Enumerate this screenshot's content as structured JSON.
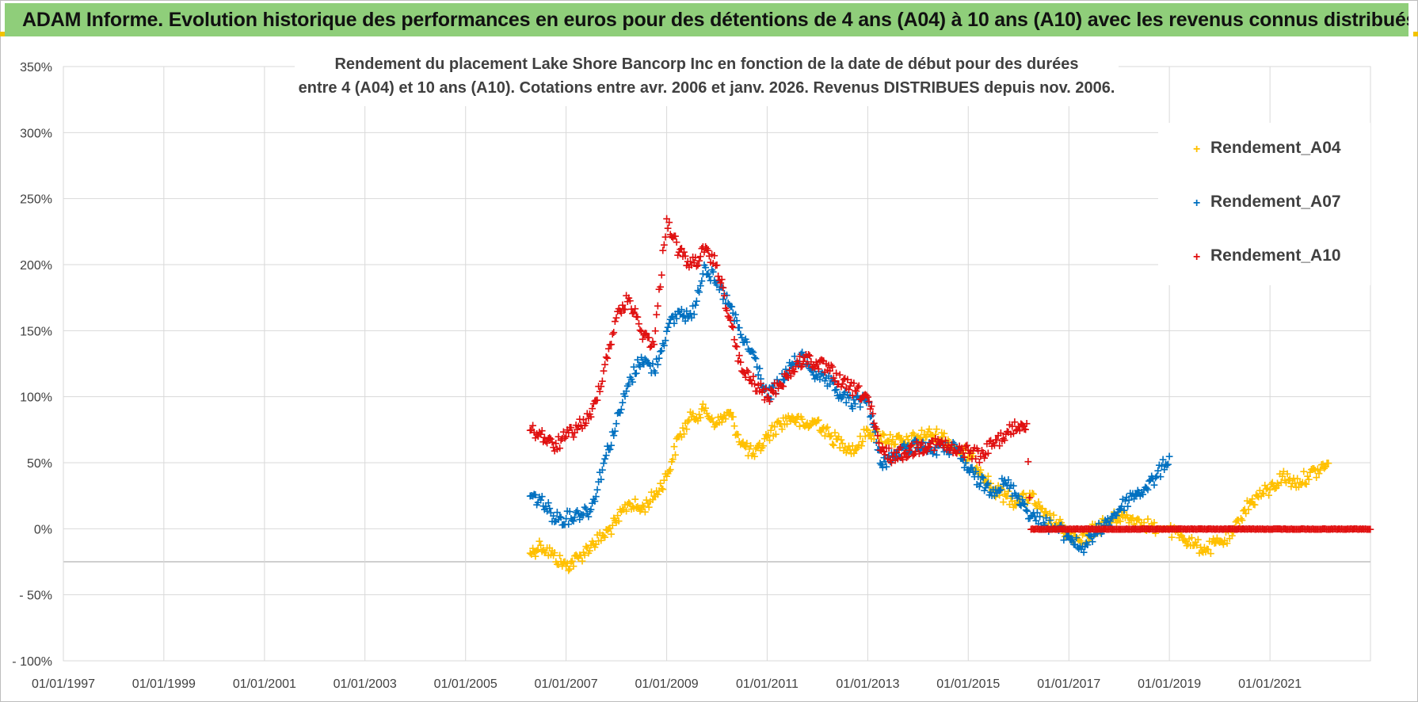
{
  "banner": "ADAM Informe. Evolution historique des performances en euros pour des détentions de 4 ans (A04) à 10 ans (A10) avec les revenus connus distribués",
  "chart_data": {
    "type": "scatter",
    "title_line1": "Rendement du placement Lake Shore Bancorp Inc en fonction de la date de début pour des durées",
    "title_line2": "entre 4 (A04) et 10 ans (A10). Cotations entre avr. 2006 et janv. 2026. Revenus DISTRIBUES depuis nov. 2006.",
    "x_tick_labels": [
      "01/01/1997",
      "01/01/1999",
      "01/01/2001",
      "01/01/2003",
      "01/01/2005",
      "01/01/2007",
      "01/01/2009",
      "01/01/2011",
      "01/01/2013",
      "01/01/2015",
      "01/01/2017",
      "01/01/2019",
      "01/01/2021"
    ],
    "y_tick_labels": [
      "350%",
      "300%",
      "250%",
      "200%",
      "150%",
      "100%",
      "50%",
      "0%",
      "- 50%",
      "- 100%"
    ],
    "xlim": [
      "1997-01-01",
      "2023-01-01"
    ],
    "ylim": [
      -100,
      350
    ],
    "grid": true,
    "legend_position": "top-right",
    "series": [
      {
        "name": "Rendement_A04",
        "color": "#ffc000",
        "x": [
          "2006-04-15",
          "2006-07-01",
          "2006-10-01",
          "2007-01-01",
          "2007-04-01",
          "2007-07-01",
          "2007-10-01",
          "2008-01-01",
          "2008-04-01",
          "2008-07-01",
          "2008-10-01",
          "2009-01-01",
          "2009-04-01",
          "2009-07-01",
          "2009-10-01",
          "2010-01-01",
          "2010-04-01",
          "2010-07-01",
          "2010-10-01",
          "2011-01-01",
          "2011-04-01",
          "2011-07-01",
          "2011-10-01",
          "2012-01-01",
          "2012-04-01",
          "2012-07-01",
          "2012-10-01",
          "2013-01-01",
          "2013-04-01",
          "2013-07-01",
          "2013-10-01",
          "2014-01-01",
          "2014-04-01",
          "2014-07-01",
          "2014-10-01",
          "2015-01-01",
          "2015-04-01",
          "2015-07-01",
          "2015-10-01",
          "2016-01-01",
          "2016-04-01",
          "2016-07-01",
          "2016-10-01",
          "2017-01-01",
          "2017-04-01",
          "2017-07-01",
          "2017-10-01",
          "2018-01-01",
          "2018-04-01",
          "2018-07-01",
          "2018-10-01",
          "2019-01-01",
          "2019-04-01",
          "2019-07-01",
          "2019-10-01",
          "2020-01-01",
          "2020-04-01",
          "2020-07-01",
          "2020-10-01",
          "2021-01-01",
          "2021-04-01",
          "2021-07-01",
          "2021-10-01",
          "2022-01-01",
          "2022-03-01"
        ],
        "y": [
          -18,
          -12,
          -20,
          -28,
          -22,
          -12,
          -5,
          5,
          20,
          15,
          25,
          40,
          70,
          85,
          90,
          80,
          88,
          65,
          55,
          70,
          80,
          85,
          78,
          82,
          70,
          65,
          60,
          75,
          70,
          68,
          65,
          70,
          72,
          70,
          62,
          55,
          45,
          30,
          25,
          20,
          25,
          10,
          5,
          -5,
          -10,
          0,
          5,
          10,
          8,
          5,
          0,
          0,
          -5,
          -12,
          -15,
          -10,
          -5,
          15,
          25,
          30,
          40,
          35,
          40,
          45,
          50
        ]
      },
      {
        "name": "Rendement_A07",
        "color": "#0070c0",
        "x": [
          "2006-04-15",
          "2006-07-01",
          "2006-10-01",
          "2007-01-01",
          "2007-04-01",
          "2007-07-01",
          "2007-10-01",
          "2008-01-01",
          "2008-04-01",
          "2008-07-01",
          "2008-10-01",
          "2009-01-01",
          "2009-04-01",
          "2009-07-01",
          "2009-10-01",
          "2010-01-01",
          "2010-04-01",
          "2010-07-01",
          "2010-10-01",
          "2011-01-01",
          "2011-04-01",
          "2011-07-01",
          "2011-10-01",
          "2012-01-01",
          "2012-04-01",
          "2012-07-01",
          "2012-10-01",
          "2013-01-01",
          "2013-04-01",
          "2013-07-01",
          "2013-10-01",
          "2014-01-01",
          "2014-04-01",
          "2014-07-01",
          "2014-10-01",
          "2015-01-01",
          "2015-04-01",
          "2015-07-01",
          "2015-10-01",
          "2016-01-01",
          "2016-04-01",
          "2016-07-01",
          "2016-10-01",
          "2017-01-01",
          "2017-04-01",
          "2017-07-01",
          "2017-10-01",
          "2018-01-01",
          "2018-04-01",
          "2018-07-01",
          "2018-10-01",
          "2019-01-01"
        ],
        "y": [
          25,
          22,
          10,
          8,
          12,
          15,
          50,
          80,
          110,
          130,
          120,
          150,
          165,
          160,
          200,
          185,
          170,
          145,
          130,
          100,
          110,
          125,
          130,
          115,
          110,
          100,
          95,
          100,
          50,
          55,
          60,
          65,
          60,
          62,
          60,
          45,
          35,
          30,
          35,
          25,
          10,
          5,
          0,
          -5,
          -15,
          -5,
          5,
          15,
          25,
          30,
          40,
          55
        ]
      },
      {
        "name": "Rendement_A10",
        "color": "#e01010",
        "x": [
          "2006-04-15",
          "2006-07-01",
          "2006-10-01",
          "2007-01-01",
          "2007-04-01",
          "2007-07-01",
          "2007-10-01",
          "2008-01-01",
          "2008-04-01",
          "2008-07-01",
          "2008-10-01",
          "2009-01-01",
          "2009-04-01",
          "2009-07-01",
          "2009-10-01",
          "2010-01-01",
          "2010-04-01",
          "2010-07-01",
          "2010-10-01",
          "2011-01-01",
          "2011-04-01",
          "2011-07-01",
          "2011-10-01",
          "2012-01-01",
          "2012-04-01",
          "2012-07-01",
          "2012-10-01",
          "2013-01-01",
          "2013-04-01",
          "2013-07-01",
          "2013-10-01",
          "2014-01-01",
          "2014-04-01",
          "2014-07-01",
          "2014-10-01",
          "2015-01-01",
          "2015-04-01",
          "2015-07-01",
          "2015-10-01",
          "2016-01-01",
          "2016-03-01",
          "2016-04-01",
          "2017-01-01",
          "2018-01-01",
          "2019-01-01",
          "2020-01-01",
          "2021-01-01",
          "2022-01-01",
          "2022-12-31"
        ],
        "y": [
          75,
          72,
          62,
          70,
          78,
          85,
          120,
          160,
          175,
          150,
          140,
          235,
          210,
          200,
          210,
          200,
          160,
          120,
          110,
          100,
          110,
          120,
          130,
          125,
          120,
          110,
          105,
          100,
          60,
          55,
          58,
          62,
          65,
          64,
          58,
          60,
          55,
          65,
          72,
          78,
          80,
          0,
          0,
          0,
          0,
          0,
          0,
          0,
          0
        ]
      }
    ]
  },
  "legend": [
    {
      "label": "Rendement_A04",
      "color": "#ffc000"
    },
    {
      "label": "Rendement_A07",
      "color": "#0070c0"
    },
    {
      "label": "Rendement_A10",
      "color": "#e01010"
    }
  ]
}
